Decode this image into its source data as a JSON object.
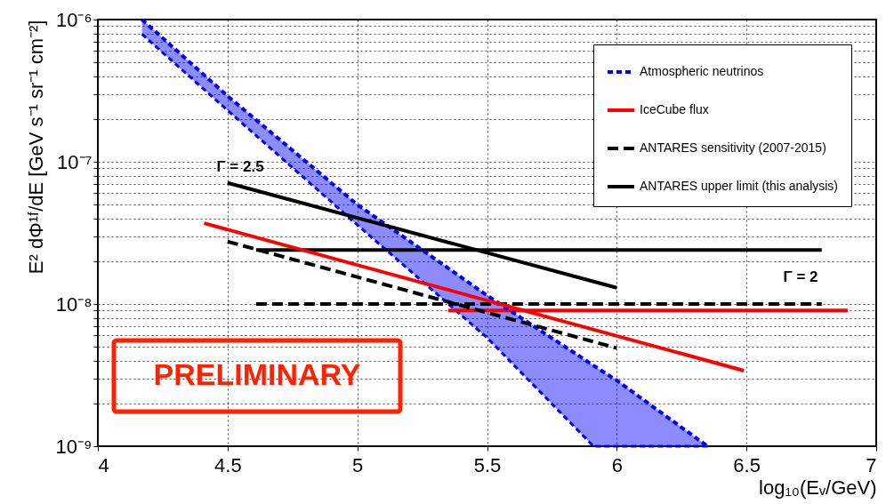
{
  "chart_data": {
    "type": "line",
    "xlabel": "log₁₀(Eᵥ/GeV)",
    "ylabel": "E² dΦ¹ᶠ/dE [GeV s⁻¹ sr⁻¹ cm⁻²]",
    "log": "y",
    "xlim": [
      4,
      7
    ],
    "xticks": [
      4,
      4.5,
      5,
      5.5,
      6,
      6.5,
      7
    ],
    "ylim": [
      1e-09,
      1e-06
    ],
    "yticks": [
      {
        "value": 1e-09,
        "label": "10⁻⁹"
      },
      {
        "value": 2e-09,
        "label": null
      },
      {
        "value": 3e-09,
        "label": null
      },
      {
        "value": 4e-09,
        "label": null
      },
      {
        "value": 5e-09,
        "label": null
      },
      {
        "value": 6e-09,
        "label": null
      },
      {
        "value": 7e-09,
        "label": null
      },
      {
        "value": 8e-09,
        "label": null
      },
      {
        "value": 9e-09,
        "label": null
      },
      {
        "value": 1e-08,
        "label": "10⁻⁸"
      },
      {
        "value": 2e-08,
        "label": null
      },
      {
        "value": 3e-08,
        "label": null
      },
      {
        "value": 4e-08,
        "label": null
      },
      {
        "value": 5e-08,
        "label": null
      },
      {
        "value": 6e-08,
        "label": null
      },
      {
        "value": 7e-08,
        "label": null
      },
      {
        "value": 8e-08,
        "label": null
      },
      {
        "value": 9e-08,
        "label": null
      },
      {
        "value": 1e-07,
        "label": "10⁻⁷"
      },
      {
        "value": 2e-07,
        "label": null
      },
      {
        "value": 3e-07,
        "label": null
      },
      {
        "value": 4e-07,
        "label": null
      },
      {
        "value": 5e-07,
        "label": null
      },
      {
        "value": 6e-07,
        "label": null
      },
      {
        "value": 7e-07,
        "label": null
      },
      {
        "value": 8e-07,
        "label": null
      },
      {
        "value": 9e-07,
        "label": null
      },
      {
        "value": 1e-06,
        "label": "10⁻⁶"
      }
    ],
    "grid": true,
    "legend": "top right",
    "series": [
      {
        "name": "Atmospheric neutrinos",
        "color": "#0000ff",
        "line_style": "dashed",
        "x": [
          4.17,
          4.5,
          5,
          5.5,
          5.91,
          6,
          6.35
        ],
        "values": [
          1e-06,
          2.9e-07,
          5e-08,
          1.15e-08,
          3.7e-09,
          2.9e-09,
          1e-09
        ],
        "lower": [
          7.9e-07,
          2.3e-07,
          3.6e-08,
          5.8e-09,
          1e-09,
          1e-09,
          1e-09
        ],
        "upper": [
          1e-06,
          2.9e-07,
          5e-08,
          1.15e-08,
          3.7e-09,
          2.9e-09,
          1e-09
        ]
      },
      {
        "color": "#0000ff",
        "line_style": "dashed",
        "x": [
          4.17,
          4.5,
          5,
          5.5,
          5.91,
          6,
          6.35
        ],
        "values": [
          7.9e-07,
          2.3e-07,
          3.6e-08,
          5.8e-09,
          1e-09,
          1e-09,
          1e-09
        ]
      },
      {
        "name": "IceCube flux",
        "color": "#ff0000",
        "line_style": "solid",
        "x": [
          4.41,
          6.49
        ],
        "values": [
          3.7e-08,
          3.4e-09
        ]
      },
      {
        "color": "#ff0000",
        "line_style": "solid",
        "x": [
          5.35,
          6.89
        ],
        "values": [
          9e-09,
          9e-09
        ]
      },
      {
        "name": "ANTARES sensitivity (2007-2015)",
        "color": "#000000",
        "line_style": "dashed",
        "x": [
          4.5,
          6
        ],
        "values": [
          2.75e-08,
          4.9e-09
        ]
      },
      {
        "color": "#000000",
        "line_style": "dashed",
        "x": [
          4.61,
          6.79
        ],
        "values": [
          1e-08,
          1e-08
        ]
      },
      {
        "name": "ANTARES upper limit (this analysis)",
        "color": "#000000",
        "line_style": "solid",
        "x": [
          4.5,
          6
        ],
        "values": [
          7.1e-08,
          1.3e-08
        ]
      },
      {
        "color": "#000000",
        "line_style": "solid",
        "x": [
          4.61,
          6.79
        ],
        "values": [
          2.4e-08,
          2.4e-08
        ]
      }
    ],
    "annotations": [
      "Γ = 2.5",
      "Γ = 2",
      "PRELIMINARY"
    ]
  }
}
